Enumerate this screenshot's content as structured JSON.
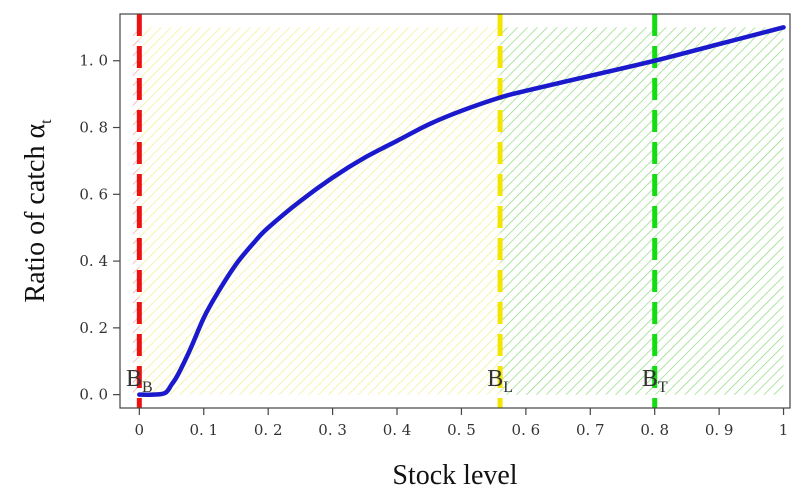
{
  "chart_data": {
    "type": "line",
    "xlabel": "Stock level",
    "ylabel_main": "Ratio of catch α",
    "ylabel_sub": "t",
    "xlim": [
      -0.03,
      1.01
    ],
    "ylim": [
      -0.04,
      1.14
    ],
    "x_ticks": [
      0,
      0.1,
      0.2,
      0.3,
      0.4,
      0.5,
      0.6,
      0.7,
      0.8,
      0.9,
      1
    ],
    "x_tick_labels": [
      "0",
      "0. 1",
      "0. 2",
      "0. 3",
      "0. 4",
      "0. 5",
      "0. 6",
      "0. 7",
      "0. 8",
      "0. 9",
      "1"
    ],
    "y_ticks": [
      0,
      0.2,
      0.4,
      0.6,
      0.8,
      1.0
    ],
    "y_tick_labels": [
      "0. 0",
      "0. 2",
      "0. 4",
      "0. 6",
      "0. 8",
      "1. 0"
    ],
    "grid": false,
    "series": [
      {
        "color": "#1a1acc",
        "x": [
          0,
          0.02,
          0.04,
          0.05,
          0.06,
          0.08,
          0.1,
          0.12,
          0.15,
          0.18,
          0.2,
          0.25,
          0.3,
          0.35,
          0.4,
          0.45,
          0.5,
          0.56,
          0.6,
          0.7,
          0.8,
          0.9,
          1.0
        ],
        "y": [
          0,
          0,
          0.005,
          0.03,
          0.06,
          0.14,
          0.23,
          0.3,
          0.39,
          0.46,
          0.5,
          0.58,
          0.65,
          0.71,
          0.76,
          0.81,
          0.85,
          0.89,
          0.91,
          0.955,
          1.0,
          1.05,
          1.1
        ]
      }
    ],
    "reference_lines": [
      {
        "x": 0,
        "label_main": "B",
        "label_sub": "B",
        "color": "#ee1111"
      },
      {
        "x": 0.56,
        "label_main": "B",
        "label_sub": "L",
        "color": "#f2e600"
      },
      {
        "x": 0.8,
        "label_main": "B",
        "label_sub": "T",
        "color": "#11dd11"
      }
    ],
    "regions": [
      {
        "from": 0,
        "to": 0.56,
        "color": "#f5f08a",
        "pattern": "hatch"
      },
      {
        "from": 0.56,
        "to": 1.0,
        "color": "#8fdc7a",
        "pattern": "hatch"
      },
      {
        "from": -0.01,
        "to": 0,
        "color": "#f5a0a0",
        "pattern": "hatch"
      }
    ]
  }
}
